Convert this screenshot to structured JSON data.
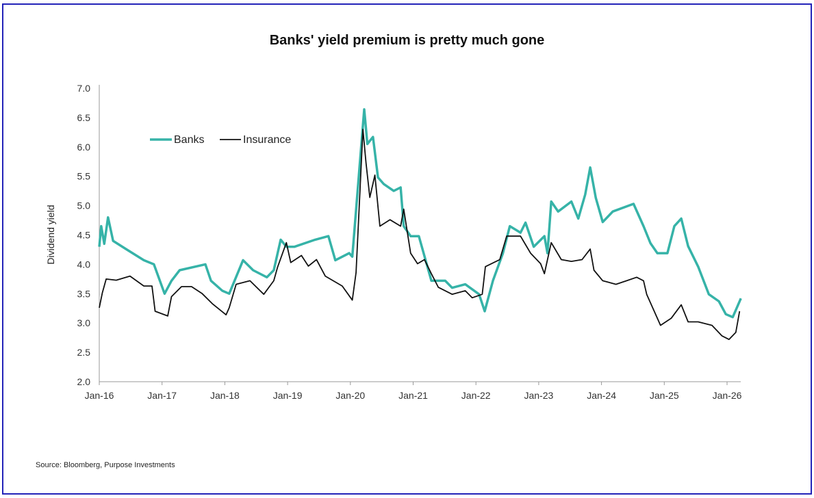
{
  "chart_data": {
    "type": "line",
    "title": "Banks' yield premium is pretty much gone",
    "xlabel": "",
    "ylabel": "Dividend yield",
    "ylim": [
      2.0,
      7.0
    ],
    "xlim": [
      2016.0,
      2026.25
    ],
    "yticks": [
      "2.0",
      "2.5",
      "3.0",
      "3.5",
      "4.0",
      "4.5",
      "5.0",
      "5.5",
      "6.0",
      "6.5",
      "7.0"
    ],
    "xticks": [
      {
        "label": "Jan-16",
        "x": 2016
      },
      {
        "label": "Jan-17",
        "x": 2017
      },
      {
        "label": "Jan-18",
        "x": 2018
      },
      {
        "label": "Jan-19",
        "x": 2019
      },
      {
        "label": "Jan-20",
        "x": 2020
      },
      {
        "label": "Jan-21",
        "x": 2021
      },
      {
        "label": "Jan-22",
        "x": 2022
      },
      {
        "label": "Jan-23",
        "x": 2023
      },
      {
        "label": "Jan-24",
        "x": 2024
      },
      {
        "label": "Jan-25",
        "x": 2025
      },
      {
        "label": "Jan-26",
        "x": 2026
      }
    ],
    "grid": false,
    "legend_placement": "top-left",
    "series": [
      {
        "name": "Banks",
        "color": "#36b3a8",
        "x": [
          2016.0,
          2016.03,
          2016.08,
          2016.14,
          2016.22,
          2016.44,
          2016.71,
          2016.87,
          2017.04,
          2017.15,
          2017.28,
          2017.69,
          2017.78,
          2017.96,
          2018.07,
          2018.29,
          2018.45,
          2018.67,
          2018.78,
          2018.89,
          2018.98,
          2019.11,
          2019.44,
          2019.65,
          2019.76,
          2019.98,
          2020.03,
          2020.22,
          2020.27,
          2020.36,
          2020.44,
          2020.53,
          2020.69,
          2020.8,
          2020.85,
          2020.96,
          2021.09,
          2021.29,
          2021.51,
          2021.62,
          2021.83,
          2022.05,
          2022.14,
          2022.27,
          2022.43,
          2022.54,
          2022.71,
          2022.79,
          2022.92,
          2023.09,
          2023.14,
          2023.2,
          2023.31,
          2023.52,
          2023.63,
          2023.74,
          2023.82,
          2023.91,
          2024.02,
          2024.18,
          2024.51,
          2024.67,
          2024.78,
          2024.89,
          2025.05,
          2025.16,
          2025.27,
          2025.38,
          2025.54,
          2025.71,
          2025.87,
          2025.98,
          2026.09,
          2026.14,
          2026.22
        ],
        "values": [
          4.3,
          4.65,
          4.35,
          4.8,
          4.4,
          4.25,
          4.07,
          4.0,
          3.5,
          3.72,
          3.9,
          4.0,
          3.72,
          3.55,
          3.5,
          4.07,
          3.9,
          3.78,
          3.9,
          4.42,
          4.3,
          4.3,
          4.42,
          4.48,
          4.07,
          4.19,
          4.13,
          6.64,
          6.05,
          6.17,
          5.48,
          5.37,
          5.25,
          5.31,
          4.65,
          4.48,
          4.48,
          3.72,
          3.72,
          3.6,
          3.66,
          3.49,
          3.2,
          3.72,
          4.19,
          4.65,
          4.54,
          4.71,
          4.3,
          4.48,
          4.19,
          5.07,
          4.9,
          5.07,
          4.78,
          5.19,
          5.65,
          5.13,
          4.72,
          4.9,
          5.03,
          4.65,
          4.36,
          4.19,
          4.19,
          4.65,
          4.78,
          4.31,
          3.96,
          3.49,
          3.37,
          3.15,
          3.1,
          3.22,
          3.42
        ]
      },
      {
        "name": "Insurance",
        "color": "#111111",
        "x": [
          2016.0,
          2016.05,
          2016.11,
          2016.27,
          2016.49,
          2016.71,
          2016.84,
          2016.89,
          2017.09,
          2017.15,
          2017.31,
          2017.47,
          2017.64,
          2017.8,
          2018.02,
          2018.07,
          2018.18,
          2018.4,
          2018.62,
          2018.78,
          2018.84,
          2018.98,
          2019.05,
          2019.22,
          2019.33,
          2019.46,
          2019.6,
          2019.87,
          2020.03,
          2020.09,
          2020.2,
          2020.25,
          2020.31,
          2020.39,
          2020.47,
          2020.63,
          2020.8,
          2020.85,
          2020.96,
          2021.07,
          2021.18,
          2021.29,
          2021.4,
          2021.62,
          2021.83,
          2021.94,
          2022.1,
          2022.15,
          2022.38,
          2022.49,
          2022.71,
          2022.87,
          2023.03,
          2023.09,
          2023.2,
          2023.36,
          2023.52,
          2023.69,
          2023.82,
          2023.88,
          2024.02,
          2024.23,
          2024.4,
          2024.56,
          2024.67,
          2024.72,
          2024.89,
          2024.94,
          2025.11,
          2025.27,
          2025.38,
          2025.54,
          2025.76,
          2025.92,
          2026.03,
          2026.14,
          2026.2
        ],
        "values": [
          3.26,
          3.52,
          3.75,
          3.73,
          3.8,
          3.63,
          3.63,
          3.2,
          3.12,
          3.45,
          3.62,
          3.62,
          3.5,
          3.33,
          3.14,
          3.26,
          3.66,
          3.72,
          3.49,
          3.72,
          3.95,
          4.37,
          4.03,
          4.15,
          3.97,
          4.08,
          3.8,
          3.63,
          3.39,
          3.86,
          6.3,
          5.72,
          5.14,
          5.52,
          4.65,
          4.76,
          4.65,
          4.94,
          4.19,
          4.01,
          4.08,
          3.84,
          3.61,
          3.49,
          3.55,
          3.43,
          3.49,
          3.96,
          4.08,
          4.48,
          4.48,
          4.19,
          4.01,
          3.84,
          4.37,
          4.08,
          4.05,
          4.08,
          4.26,
          3.9,
          3.72,
          3.66,
          3.72,
          3.78,
          3.72,
          3.49,
          3.08,
          2.96,
          3.08,
          3.31,
          3.02,
          3.02,
          2.96,
          2.78,
          2.72,
          2.84,
          3.2
        ]
      }
    ]
  },
  "source": "Source: Bloomberg, Purpose Investments"
}
